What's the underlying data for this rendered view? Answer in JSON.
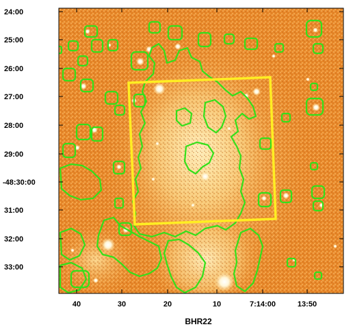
{
  "figure": {
    "title": "BHR22",
    "y_ticks": [
      "24:00",
      "25:00",
      "26:00",
      "27:00",
      "28:00",
      "29:00",
      "-48:30:00",
      "31:00",
      "32:00",
      "33:00"
    ],
    "x_ticks": [
      "40",
      "30",
      "20",
      "10",
      "7:14:00",
      "13:50"
    ],
    "colors": {
      "contour": "#33e01a",
      "box": "#ffee22",
      "image_base": "#e98a2b",
      "image_bright": "#ffe9a6"
    }
  }
}
